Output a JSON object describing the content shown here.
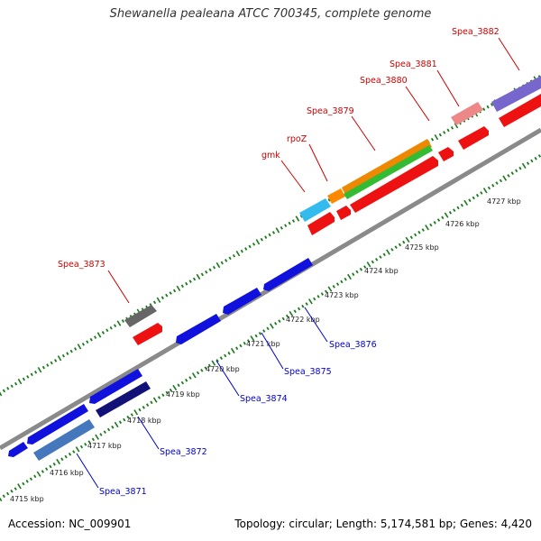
{
  "title": "Shewanella pealeana ATCC 700345, complete genome",
  "accession": "Accession: NC_009901",
  "stats": "Topology: circular; Length: 5,174,581 bp; Genes: 4,420",
  "colors": {
    "backbone": "#888888",
    "forward_label": "#cc0000",
    "reverse_label": "#0000cc",
    "tick": "#1a7a1a"
  },
  "scale": {
    "unit": "kbp",
    "ticks": [
      "4715 kbp",
      "4716 kbp",
      "4717 kbp",
      "4718 kbp",
      "4719 kbp",
      "4720 kbp",
      "4721 kbp",
      "4722 kbp",
      "4723 kbp",
      "4724 kbp",
      "4725 kbp",
      "4726 kbp",
      "4727 kbp"
    ]
  },
  "gene_labels": {
    "forward": [
      "Spea_3873",
      "gmk",
      "rpoZ",
      "Spea_3879",
      "Spea_3880",
      "Spea_3881",
      "Spea_3882"
    ],
    "reverse": [
      "Spea_3871",
      "Spea_3872",
      "Spea_3874",
      "Spea_3875",
      "Spea_3876"
    ]
  }
}
